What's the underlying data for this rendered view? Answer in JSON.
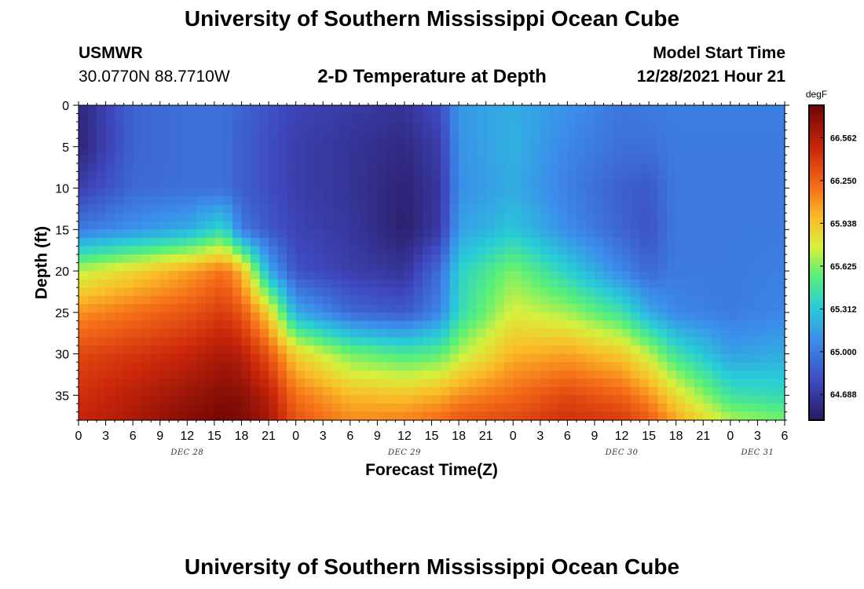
{
  "header": {
    "title": "University of Southern Mississippi Ocean Cube",
    "station": "USMWR",
    "coordinates": "30.0770N  88.7710W",
    "subtitle": "2-D Temperature at Depth",
    "model_start_label": "Model Start Time",
    "model_start_value": "12/28/2021 Hour 21",
    "footer_title": "University of Southern Mississippi Ocean Cube"
  },
  "chart_data": {
    "type": "heatmap",
    "title": "2-D Temperature at Depth",
    "xlabel": "Forecast Time(Z)",
    "ylabel": "Depth (ft)",
    "x_range_hours": [
      0,
      78
    ],
    "y_range": [
      0,
      38
    ],
    "y_inverted": true,
    "x_ticks": [
      "0",
      "3",
      "6",
      "9",
      "12",
      "15",
      "18",
      "21",
      "0",
      "3",
      "6",
      "9",
      "12",
      "15",
      "18",
      "21",
      "0",
      "3",
      "6",
      "9",
      "12",
      "15",
      "18",
      "21",
      "0",
      "3",
      "6"
    ],
    "y_ticks": [
      0,
      5,
      10,
      15,
      20,
      25,
      30,
      35
    ],
    "day_labels": [
      {
        "label": "DEC 28",
        "hour": 12
      },
      {
        "label": "DEC 29",
        "hour": 36
      },
      {
        "label": "DEC 30",
        "hour": 60
      },
      {
        "label": "DEC 31",
        "hour": 75
      }
    ],
    "colorbar": {
      "unit": "degF",
      "min": 64.5,
      "max": 66.8,
      "ticks": [
        "66.562",
        "66.250",
        "65.938",
        "65.625",
        "65.312",
        "65.000",
        "64.688"
      ]
    },
    "depth_profiles_ft": [
      0,
      5,
      10,
      15,
      20,
      25,
      30,
      35,
      38
    ],
    "temperature_grid": [
      {
        "hour": 0,
        "values": [
          64.58,
          64.56,
          64.72,
          65.0,
          65.72,
          66.1,
          66.35,
          66.45,
          66.5
        ]
      },
      {
        "hour": 6,
        "values": [
          64.9,
          64.9,
          64.92,
          65.1,
          65.88,
          66.2,
          66.42,
          66.55,
          66.6
        ]
      },
      {
        "hour": 12,
        "values": [
          64.95,
          64.95,
          64.95,
          65.2,
          66.05,
          66.3,
          66.5,
          66.65,
          66.72
        ]
      },
      {
        "hour": 16,
        "values": [
          64.95,
          64.95,
          64.95,
          65.4,
          66.2,
          66.4,
          66.6,
          66.72,
          66.78
        ]
      },
      {
        "hour": 18,
        "values": [
          64.9,
          64.88,
          64.88,
          65.0,
          66.0,
          66.3,
          66.55,
          66.7,
          66.75
        ]
      },
      {
        "hour": 21,
        "values": [
          64.82,
          64.8,
          64.8,
          64.85,
          65.2,
          65.9,
          66.3,
          66.55,
          66.62
        ]
      },
      {
        "hour": 24,
        "values": [
          64.75,
          64.72,
          64.72,
          64.75,
          64.82,
          65.2,
          65.9,
          66.2,
          66.3
        ]
      },
      {
        "hour": 30,
        "values": [
          64.7,
          64.66,
          64.66,
          64.68,
          64.72,
          64.92,
          65.6,
          65.98,
          66.12
        ]
      },
      {
        "hour": 36,
        "values": [
          64.66,
          64.6,
          64.56,
          64.54,
          64.66,
          64.85,
          65.5,
          65.95,
          66.15
        ]
      },
      {
        "hour": 40,
        "values": [
          64.8,
          64.72,
          64.68,
          64.7,
          64.95,
          65.05,
          65.55,
          66.02,
          66.22
        ]
      },
      {
        "hour": 42,
        "values": [
          65.12,
          65.1,
          65.08,
          65.15,
          65.35,
          65.4,
          65.7,
          66.1,
          66.3
        ]
      },
      {
        "hour": 48,
        "values": [
          65.2,
          65.22,
          65.2,
          65.3,
          65.62,
          65.78,
          66.0,
          66.22,
          66.35
        ]
      },
      {
        "hour": 54,
        "values": [
          65.1,
          65.05,
          65.02,
          65.08,
          65.35,
          65.68,
          66.05,
          66.35,
          66.45
        ]
      },
      {
        "hour": 60,
        "values": [
          64.98,
          64.95,
          64.88,
          64.9,
          65.05,
          65.45,
          65.92,
          66.25,
          66.4
        ]
      },
      {
        "hour": 63,
        "values": [
          65.0,
          64.95,
          64.85,
          64.82,
          64.92,
          65.2,
          65.72,
          66.1,
          66.28
        ]
      },
      {
        "hour": 66,
        "values": [
          65.02,
          65.0,
          65.0,
          65.0,
          65.0,
          65.05,
          65.45,
          65.85,
          66.05
        ]
      },
      {
        "hour": 72,
        "values": [
          65.02,
          65.0,
          65.0,
          65.0,
          65.0,
          65.0,
          65.15,
          65.45,
          65.7
        ]
      },
      {
        "hour": 78,
        "values": [
          65.02,
          65.0,
          65.0,
          65.0,
          65.02,
          65.05,
          65.2,
          65.4,
          65.6
        ]
      }
    ]
  }
}
